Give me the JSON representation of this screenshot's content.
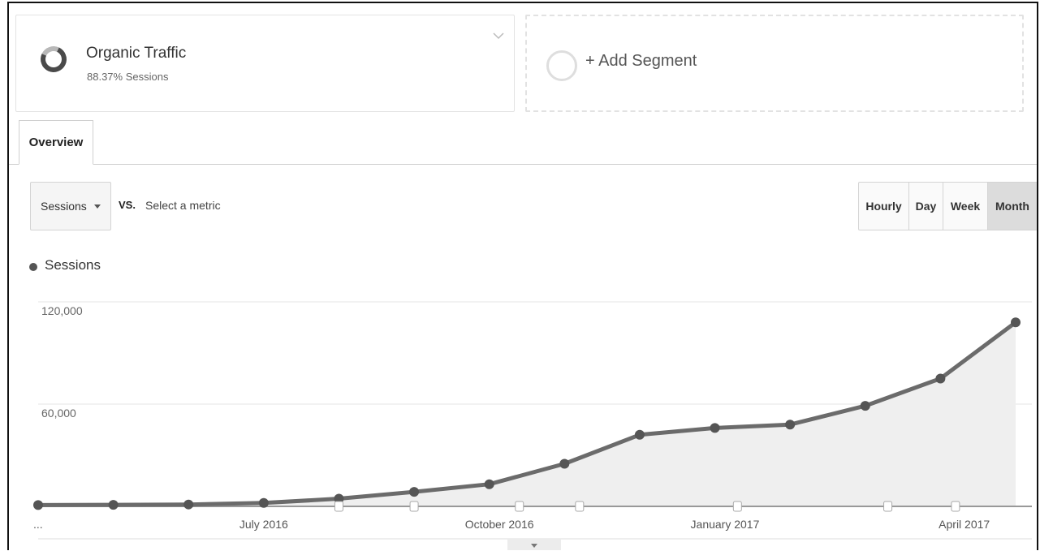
{
  "segments": {
    "primary": {
      "title": "Organic Traffic",
      "subtitle": "88.37% Sessions"
    },
    "add": {
      "label": "+ Add Segment"
    }
  },
  "tabs": [
    {
      "label": "Overview"
    }
  ],
  "controls": {
    "metric": "Sessions",
    "vs": "VS.",
    "select_metric": "Select a metric",
    "granularity": [
      "Hourly",
      "Day",
      "Week",
      "Month"
    ],
    "active_granularity": "Month"
  },
  "legend": {
    "label": "Sessions"
  },
  "colors": {
    "line": "#6b6b6b",
    "area": "#efefef",
    "grid": "#e6e6e6"
  },
  "chart_data": {
    "type": "area",
    "series": [
      {
        "name": "Sessions",
        "values": [
          800,
          900,
          1100,
          2000,
          4500,
          8500,
          13000,
          25000,
          42000,
          46000,
          48000,
          59000,
          75000,
          108000
        ]
      }
    ],
    "x_ticks": [
      "...",
      "July 2016",
      "October 2016",
      "January 2017",
      "April 2017"
    ],
    "y_ticks": [
      "60,000",
      "120,000"
    ],
    "ylim": [
      0,
      120000
    ],
    "grid": true
  }
}
